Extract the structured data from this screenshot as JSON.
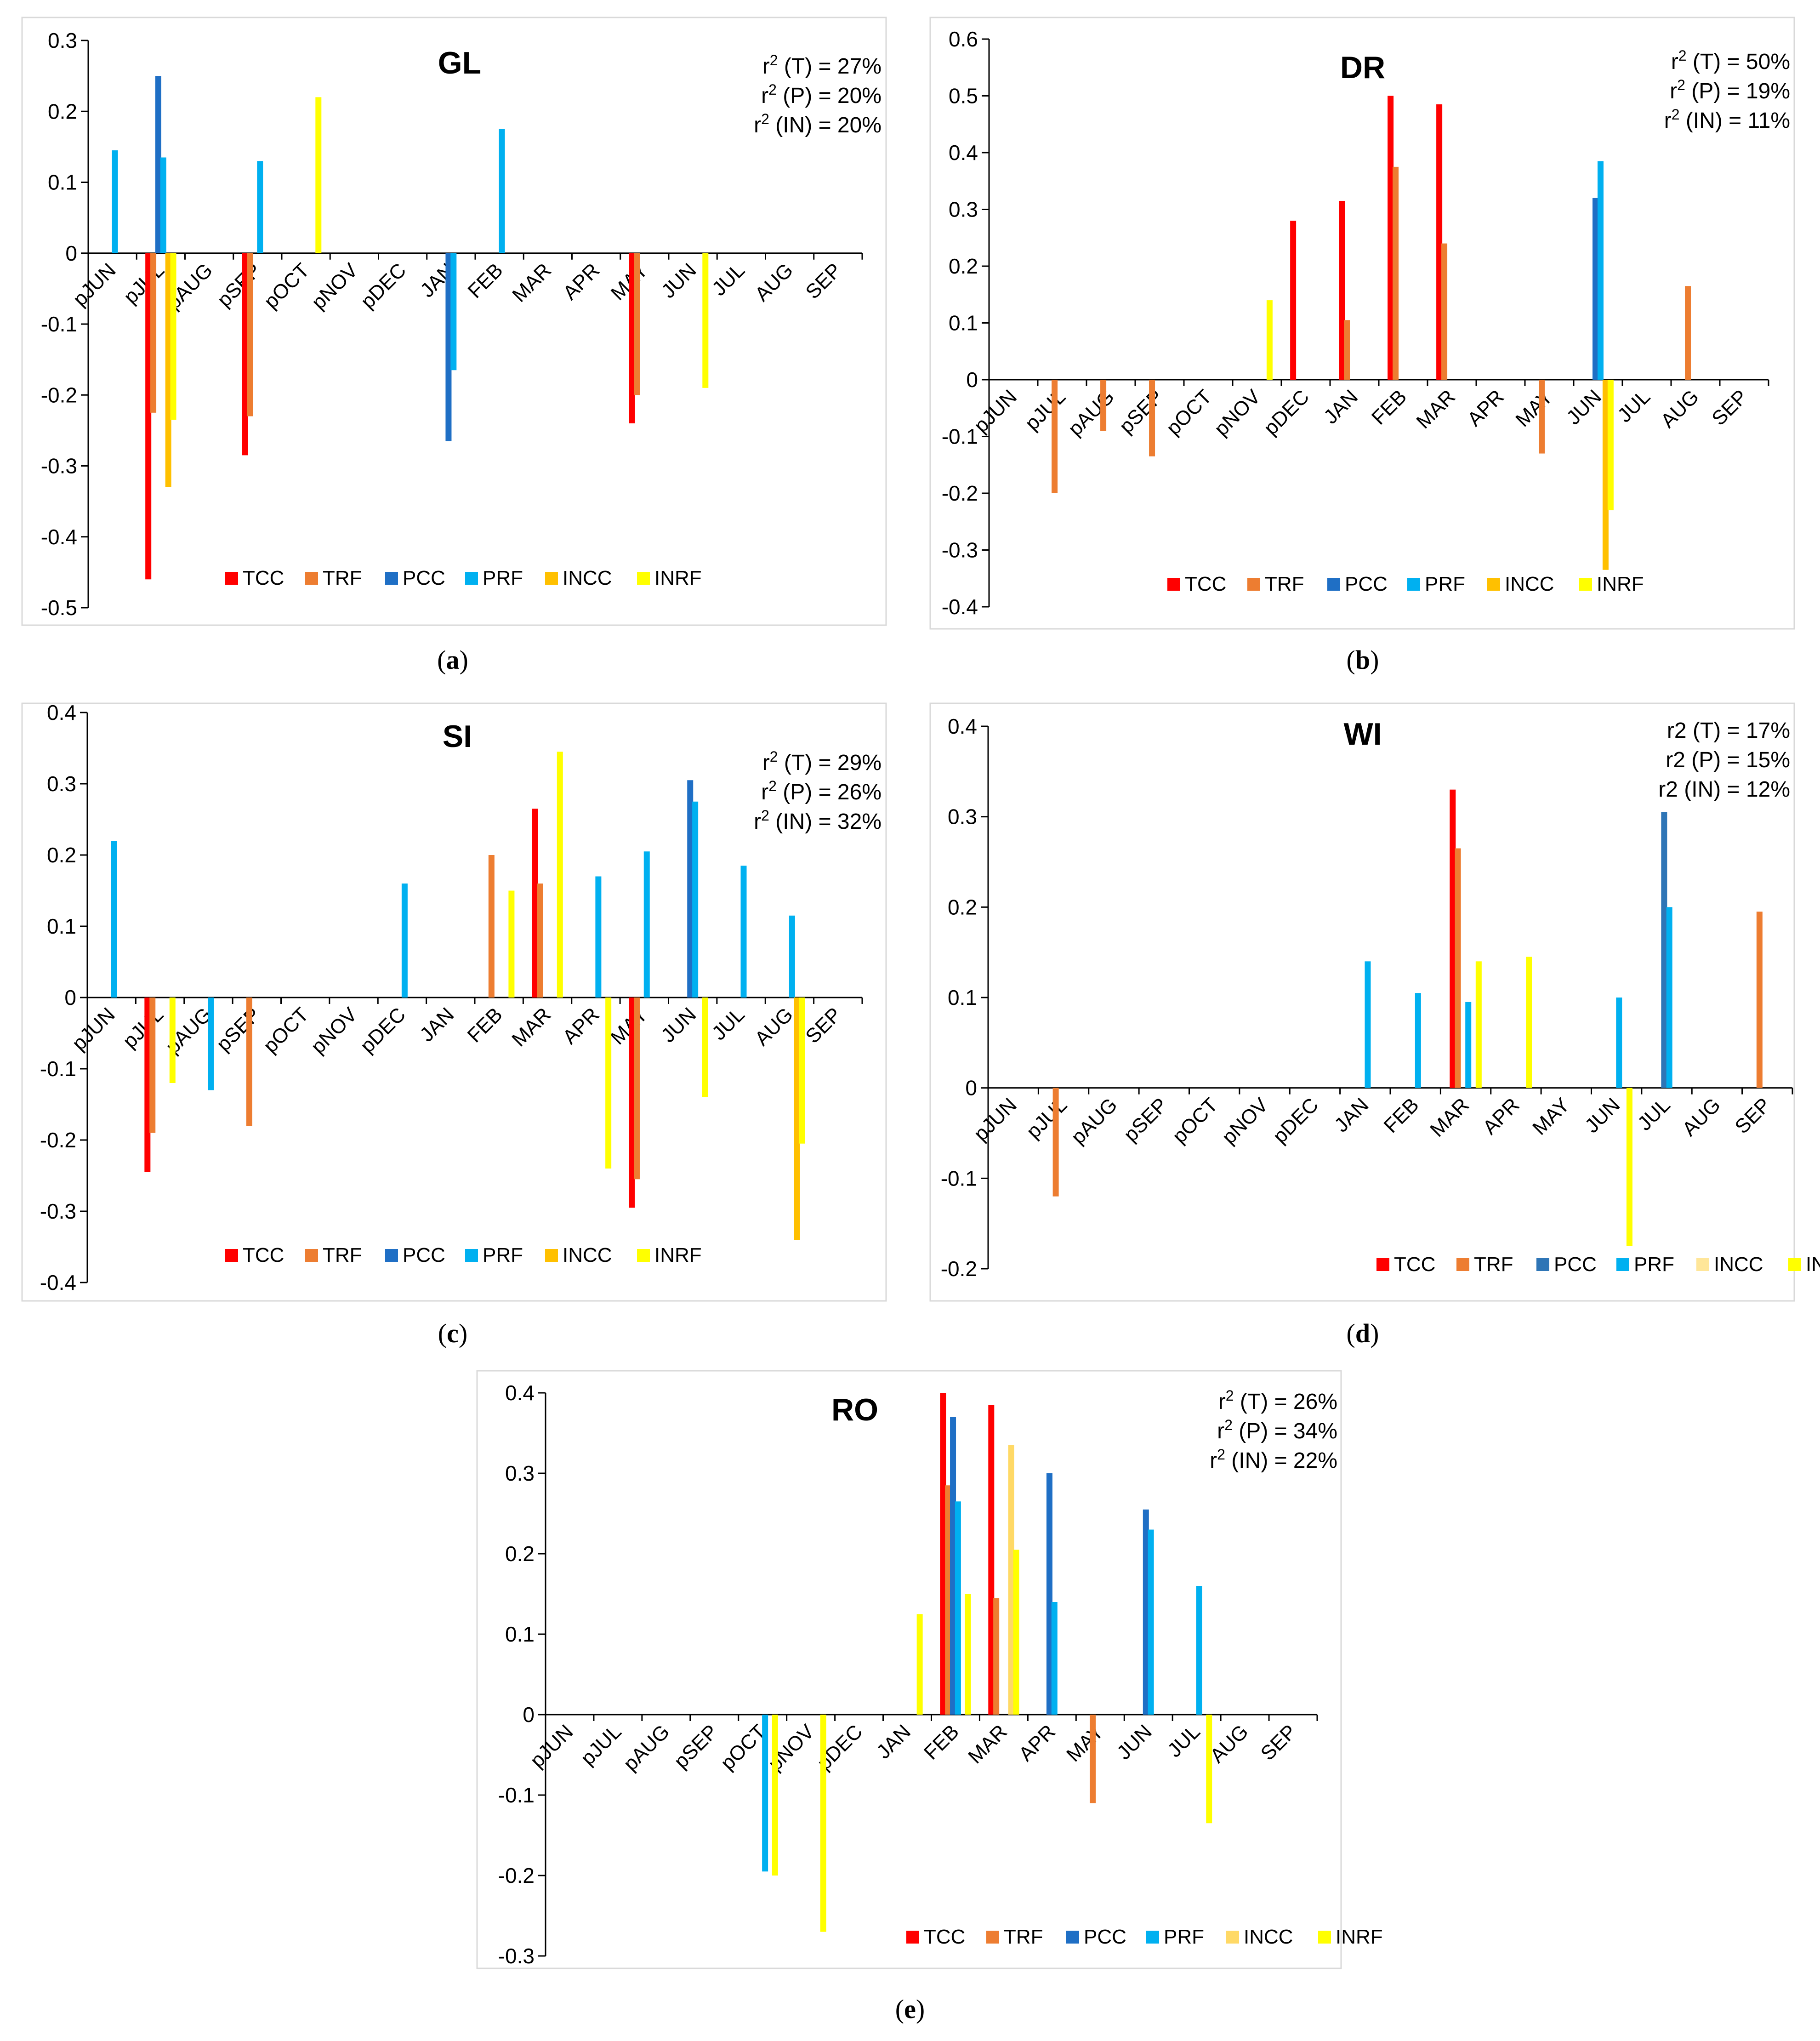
{
  "legend_items": [
    {
      "key": "TCC",
      "label": "TCC",
      "color": "#FF0000"
    },
    {
      "key": "TRF",
      "label": "TRF",
      "color": "#ED7D31"
    },
    {
      "key": "PCC",
      "label": "PCC",
      "color": "#1F6FC5"
    },
    {
      "key": "PRF",
      "label": "PRF",
      "color": "#00B0F0"
    },
    {
      "key": "INCC",
      "label": "INCC",
      "color": "#FFC000"
    },
    {
      "key": "INRF",
      "label": "INRF",
      "color": "#FFFF00"
    }
  ],
  "chart_data": [
    {
      "id": "GL",
      "type": "bar",
      "title": "GL",
      "caption": "(a)",
      "categories": [
        "pJUN",
        "pJUL",
        "pAUG",
        "pSEP",
        "pOCT",
        "pNOV",
        "pDEC",
        "JAN",
        "FEB",
        "MAR",
        "APR",
        "MAY",
        "JUN",
        "JUL",
        "AUG",
        "SEP"
      ],
      "ylim": [
        -0.5,
        0.3
      ],
      "ystep": 0.1,
      "yticks": [
        "0.3",
        "0.2",
        "0.1",
        "0",
        "-0.1",
        "-0.2",
        "-0.3",
        "-0.4",
        "-0.5"
      ],
      "annotations": [
        "r² (T) = 27%",
        "r² (P) = 20%",
        "r² (IN) = 20%"
      ],
      "series": [
        {
          "name": "TCC",
          "values": [
            0,
            -0.46,
            0,
            -0.285,
            0,
            0,
            0,
            0,
            0,
            0,
            0,
            -0.24,
            0,
            0,
            0,
            0
          ]
        },
        {
          "name": "TRF",
          "values": [
            0,
            -0.225,
            0,
            -0.23,
            0,
            0,
            0,
            0,
            0,
            0,
            0,
            -0.2,
            0,
            0,
            0,
            0
          ]
        },
        {
          "name": "PCC",
          "values": [
            0,
            0.25,
            0,
            0,
            0,
            0,
            0,
            -0.265,
            0,
            0,
            0,
            0,
            0,
            0,
            0,
            0
          ]
        },
        {
          "name": "PRF",
          "values": [
            0.145,
            0.135,
            0,
            0.13,
            0,
            0,
            0,
            -0.165,
            0.175,
            0,
            0,
            0,
            0,
            0,
            0,
            0
          ]
        },
        {
          "name": "INCC",
          "values": [
            0,
            -0.33,
            0,
            0,
            0,
            0,
            0,
            0,
            0,
            0,
            0,
            0,
            0,
            0,
            0,
            0
          ]
        },
        {
          "name": "INRF",
          "values": [
            0,
            -0.235,
            0,
            0,
            0.22,
            0,
            0,
            0,
            0,
            0,
            0,
            0,
            -0.19,
            0,
            0,
            0
          ]
        }
      ]
    },
    {
      "id": "DR",
      "type": "bar",
      "title": "DR",
      "caption": "(b)",
      "categories": [
        "pJUN",
        "pJUL",
        "pAUG",
        "pSEP",
        "pOCT",
        "pNOV",
        "pDEC",
        "JAN",
        "FEB",
        "MAR",
        "APR",
        "MAY",
        "JUN",
        "JUL",
        "AUG",
        "SEP"
      ],
      "ylim": [
        -0.4,
        0.6
      ],
      "ystep": 0.1,
      "yticks": [
        "0.6",
        "0.5",
        "0.4",
        "0.3",
        "0.2",
        "0.1",
        "0",
        "-0.1",
        "-0.2",
        "-0.3",
        "-0.4"
      ],
      "annotations": [
        "r² (T) = 50%",
        "r² (P) = 19%",
        "r² (IN) = 11%"
      ],
      "series": [
        {
          "name": "TCC",
          "values": [
            0,
            0,
            0,
            0,
            0,
            0,
            0.28,
            0.315,
            0.5,
            0.485,
            0,
            0,
            0,
            0,
            0,
            0
          ]
        },
        {
          "name": "TRF",
          "values": [
            0,
            -0.2,
            -0.09,
            -0.135,
            0,
            0,
            0,
            0.105,
            0.375,
            0.24,
            0,
            -0.13,
            0,
            0,
            0.165,
            0
          ]
        },
        {
          "name": "PCC",
          "values": [
            0,
            0,
            0,
            0,
            0,
            0,
            0,
            0,
            0,
            0,
            0,
            0,
            0.32,
            0,
            0,
            0
          ]
        },
        {
          "name": "PRF",
          "values": [
            0,
            0,
            0,
            0,
            0,
            0,
            0,
            0,
            0,
            0,
            0,
            0,
            0.385,
            0,
            0,
            0
          ]
        },
        {
          "name": "INCC",
          "values": [
            0,
            0,
            0,
            0,
            0,
            0,
            0,
            0,
            0,
            0,
            0,
            0,
            -0.335,
            0,
            0,
            0
          ]
        },
        {
          "name": "INRF",
          "values": [
            0,
            0,
            0,
            0,
            0,
            0.14,
            0,
            0,
            0,
            0,
            0,
            0,
            -0.23,
            0,
            0,
            0
          ]
        }
      ]
    },
    {
      "id": "SI",
      "type": "bar",
      "title": "SI",
      "caption": "(c)",
      "categories": [
        "pJUN",
        "pJUL",
        "pAUG",
        "pSEP",
        "pOCT",
        "pNOV",
        "pDEC",
        "JAN",
        "FEB",
        "MAR",
        "APR",
        "MAY",
        "JUN",
        "JUL",
        "AUG",
        "SEP"
      ],
      "ylim": [
        -0.4,
        0.4
      ],
      "ystep": 0.1,
      "yticks": [
        "0.4",
        "0.3",
        "0.2",
        "0.1",
        "0",
        "-0.1",
        "-0.2",
        "-0.3",
        "-0.4"
      ],
      "annotations": [
        "r² (T) = 29%",
        "r² (P) = 26%",
        "r² (IN) = 32%"
      ],
      "series": [
        {
          "name": "TCC",
          "values": [
            0,
            -0.245,
            0,
            0,
            0,
            0,
            0,
            0,
            0,
            0.265,
            0,
            -0.295,
            0,
            0,
            0,
            0
          ]
        },
        {
          "name": "TRF",
          "values": [
            0,
            -0.19,
            0,
            -0.18,
            0,
            0,
            0,
            0,
            0.2,
            0.16,
            0,
            -0.255,
            0,
            0,
            0,
            0
          ]
        },
        {
          "name": "PCC",
          "values": [
            0,
            0,
            0,
            0,
            0,
            0,
            0,
            0,
            0,
            0,
            0,
            0,
            0.305,
            0,
            0,
            0
          ]
        },
        {
          "name": "PRF",
          "values": [
            0.22,
            0,
            -0.13,
            0,
            0,
            0,
            0.16,
            0,
            0,
            0,
            0.17,
            0.205,
            0.275,
            0.185,
            0.115,
            0
          ]
        },
        {
          "name": "INCC",
          "values": [
            0,
            0,
            0,
            0,
            0,
            0,
            0,
            0,
            0,
            0,
            0,
            0,
            0,
            0,
            -0.34,
            0
          ]
        },
        {
          "name": "INRF",
          "values": [
            0,
            -0.12,
            0,
            0,
            0,
            0,
            0,
            0,
            0.15,
            0.345,
            -0.24,
            0,
            -0.14,
            0,
            -0.205,
            0
          ]
        }
      ]
    },
    {
      "id": "WI",
      "type": "bar",
      "title": "WI",
      "caption": "(d)",
      "categories": [
        "pJUN",
        "pJUL",
        "pAUG",
        "pSEP",
        "pOCT",
        "pNOV",
        "pDEC",
        "JAN",
        "FEB",
        "MAR",
        "APR",
        "MAY",
        "JUN",
        "JUL",
        "AUG",
        "SEP"
      ],
      "ylim": [
        -0.2,
        0.4
      ],
      "ystep": 0.1,
      "yticks": [
        "0.4",
        "0.3",
        "0.2",
        "0.1",
        "0",
        "-0.1",
        "-0.2"
      ],
      "annotations": [
        "r2 (T) = 17%",
        "r2 (P) = 15%",
        "r2 (IN) = 12%"
      ],
      "legend_colors": {
        "PCC": "#2E75B6",
        "INCC": "#FFE699"
      },
      "series": [
        {
          "name": "TCC",
          "values": [
            0,
            0,
            0,
            0,
            0,
            0,
            0,
            0,
            0,
            0.33,
            0,
            0,
            0,
            0,
            0,
            0
          ]
        },
        {
          "name": "TRF",
          "values": [
            0,
            -0.12,
            0,
            0,
            0,
            0,
            0,
            0,
            0,
            0.265,
            0,
            0,
            0,
            0,
            0,
            0.195
          ]
        },
        {
          "name": "PCC",
          "values": [
            0,
            0,
            0,
            0,
            0,
            0,
            0,
            0,
            0,
            0,
            0,
            0,
            0,
            0.305,
            0,
            0
          ]
        },
        {
          "name": "PRF",
          "values": [
            0,
            0,
            0,
            0,
            0,
            0,
            0,
            0.14,
            0.105,
            0.095,
            0,
            0,
            0.1,
            0.2,
            0,
            0
          ]
        },
        {
          "name": "INCC",
          "values": [
            0,
            0,
            0,
            0,
            0,
            0,
            0,
            0,
            0,
            0,
            0,
            0,
            0,
            0,
            0,
            0
          ]
        },
        {
          "name": "INRF",
          "values": [
            0,
            0,
            0,
            0,
            0,
            0,
            0,
            0,
            0,
            0.14,
            0.145,
            0,
            -0.175,
            0,
            0,
            0
          ]
        }
      ]
    },
    {
      "id": "RO",
      "type": "bar",
      "title": "RO",
      "caption": "(e)",
      "categories": [
        "pJUN",
        "pJUL",
        "pAUG",
        "pSEP",
        "pOCT",
        "pNOV",
        "pDEC",
        "JAN",
        "FEB",
        "MAR",
        "APR",
        "MAY",
        "JUN",
        "JUL",
        "AUG",
        "SEP"
      ],
      "ylim": [
        -0.3,
        0.4
      ],
      "ystep": 0.1,
      "yticks": [
        "0.4",
        "0.3",
        "0.2",
        "0.1",
        "0",
        "-0.1",
        "-0.2",
        "-0.3"
      ],
      "annotations": [
        "r² (T) = 26%",
        "r² (P) = 34%",
        "r² (IN) = 22%"
      ],
      "legend_colors": {
        "INCC": "#FFD966"
      },
      "series": [
        {
          "name": "TCC",
          "values": [
            0,
            0,
            0,
            0,
            0,
            0,
            0,
            0,
            0.4,
            0.385,
            0,
            0,
            0,
            0,
            0,
            0
          ]
        },
        {
          "name": "TRF",
          "values": [
            0,
            0,
            0,
            0,
            0,
            0,
            0,
            0,
            0.285,
            0.145,
            0,
            -0.11,
            0,
            0,
            0,
            0
          ]
        },
        {
          "name": "PCC",
          "values": [
            0,
            0,
            0,
            0,
            0,
            0,
            0,
            0,
            0.37,
            0,
            0.3,
            0,
            0.255,
            0,
            0,
            0
          ]
        },
        {
          "name": "PRF",
          "values": [
            0,
            0,
            0,
            0,
            -0.195,
            0,
            0,
            0,
            0.265,
            0,
            0.14,
            0,
            0.23,
            0.16,
            0,
            0
          ]
        },
        {
          "name": "INCC",
          "values": [
            0,
            0,
            0,
            0,
            0,
            0,
            0,
            0,
            0,
            0.335,
            0,
            0,
            0,
            0,
            0,
            0
          ]
        },
        {
          "name": "INRF",
          "values": [
            0,
            0,
            0,
            0,
            -0.2,
            -0.27,
            0,
            0.125,
            0.15,
            0.205,
            0,
            0,
            0,
            -0.135,
            0,
            0
          ]
        }
      ]
    }
  ]
}
